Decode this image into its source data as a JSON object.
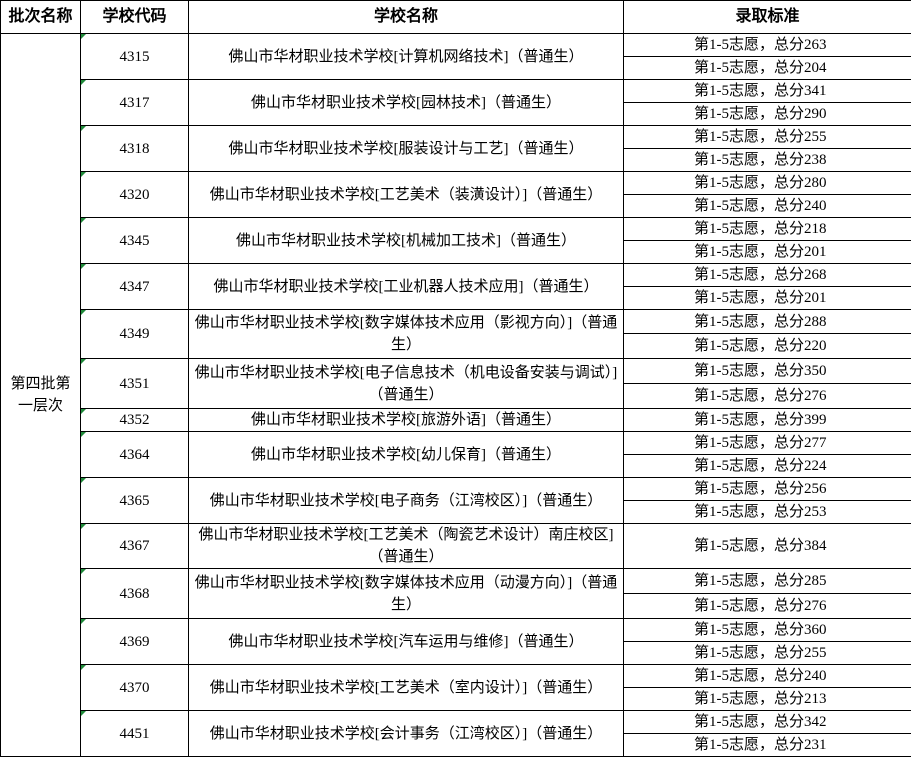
{
  "table": {
    "headers": [
      "批次名称",
      "学校代码",
      "学校名称",
      "录取标准"
    ],
    "batch": "第四批第一层次",
    "rows": [
      {
        "code": "4315",
        "name": "佛山市华材职业技术学校[计算机网络技术]（普通生）",
        "criteria": [
          "第1-5志愿，总分263",
          "第1-5志愿，总分204"
        ]
      },
      {
        "code": "4317",
        "name": "佛山市华材职业技术学校[园林技术]（普通生）",
        "criteria": [
          "第1-5志愿，总分341",
          "第1-5志愿，总分290"
        ]
      },
      {
        "code": "4318",
        "name": "佛山市华材职业技术学校[服装设计与工艺]（普通生）",
        "criteria": [
          "第1-5志愿，总分255",
          "第1-5志愿，总分238"
        ]
      },
      {
        "code": "4320",
        "name": "佛山市华材职业技术学校[工艺美术（装潢设计）]（普通生）",
        "criteria": [
          "第1-5志愿，总分280",
          "第1-5志愿，总分240"
        ]
      },
      {
        "code": "4345",
        "name": "佛山市华材职业技术学校[机械加工技术]（普通生）",
        "criteria": [
          "第1-5志愿，总分218",
          "第1-5志愿，总分201"
        ]
      },
      {
        "code": "4347",
        "name": "佛山市华材职业技术学校[工业机器人技术应用]（普通生）",
        "criteria": [
          "第1-5志愿，总分268",
          "第1-5志愿，总分201"
        ]
      },
      {
        "code": "4349",
        "name": "佛山市华材职业技术学校[数字媒体技术应用（影视方向）]（普通生）",
        "criteria": [
          "第1-5志愿，总分288",
          "第1-5志愿，总分220"
        ]
      },
      {
        "code": "4351",
        "name": "佛山市华材职业技术学校[电子信息技术（机电设备安装与调试）]（普通生）",
        "criteria": [
          "第1-5志愿，总分350",
          "第1-5志愿，总分276"
        ]
      },
      {
        "code": "4352",
        "name": "佛山市华材职业技术学校[旅游外语]（普通生）",
        "criteria": [
          "第1-5志愿，总分399"
        ]
      },
      {
        "code": "4364",
        "name": "佛山市华材职业技术学校[幼儿保育]（普通生）",
        "criteria": [
          "第1-5志愿，总分277",
          "第1-5志愿，总分224"
        ]
      },
      {
        "code": "4365",
        "name": "佛山市华材职业技术学校[电子商务（江湾校区）]（普通生）",
        "criteria": [
          "第1-5志愿，总分256",
          "第1-5志愿，总分253"
        ]
      },
      {
        "code": "4367",
        "name": "佛山市华材职业技术学校[工艺美术（陶瓷艺术设计）南庄校区]（普通生）",
        "criteria": [
          "第1-5志愿，总分384"
        ]
      },
      {
        "code": "4368",
        "name": "佛山市华材职业技术学校[数字媒体技术应用（动漫方向）]（普通生）",
        "criteria": [
          "第1-5志愿，总分285",
          "第1-5志愿，总分276"
        ]
      },
      {
        "code": "4369",
        "name": "佛山市华材职业技术学校[汽车运用与维修]（普通生）",
        "criteria": [
          "第1-5志愿，总分360",
          "第1-5志愿，总分255"
        ]
      },
      {
        "code": "4370",
        "name": "佛山市华材职业技术学校[工艺美术（室内设计）]（普通生）",
        "criteria": [
          "第1-5志愿，总分240",
          "第1-5志愿，总分213"
        ]
      },
      {
        "code": "4451",
        "name": "佛山市华材职业技术学校[会计事务（江湾校区）]（普通生）",
        "criteria": [
          "第1-5志愿，总分342",
          "第1-5志愿，总分231"
        ]
      }
    ]
  }
}
